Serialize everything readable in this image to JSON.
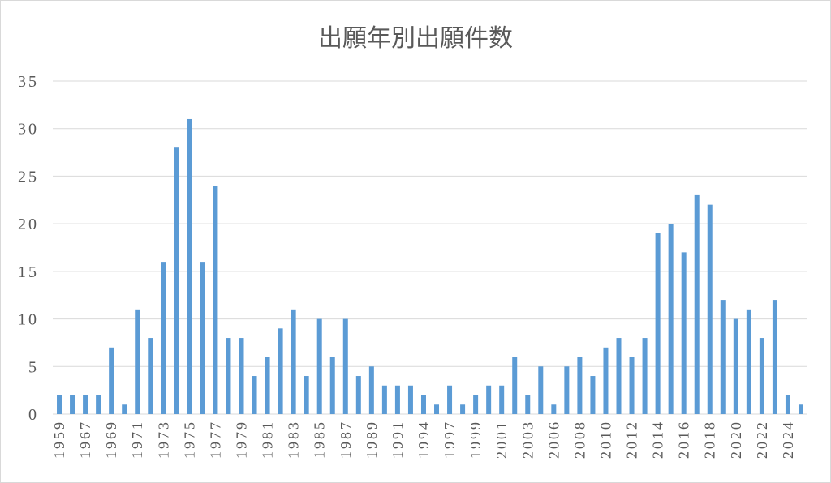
{
  "chart_data": {
    "type": "bar",
    "title": "出願年別出願件数",
    "xlabel": "",
    "ylabel": "",
    "categories": [
      "1959",
      "",
      "1967",
      "",
      "1969",
      "",
      "1971",
      "",
      "1973",
      "",
      "1975",
      "",
      "1977",
      "",
      "1979",
      "",
      "1981",
      "",
      "1983",
      "",
      "1985",
      "",
      "1987",
      "",
      "1989",
      "",
      "1991",
      "",
      "1994",
      "",
      "1997",
      "",
      "1999",
      "",
      "2001",
      "",
      "2003",
      "",
      "2006",
      "",
      "2008",
      "",
      "2010",
      "",
      "2012",
      "",
      "2014",
      "",
      "2016",
      "",
      "2018",
      "",
      "2020",
      "",
      "2022",
      "",
      "2024",
      ""
    ],
    "values": [
      2,
      2,
      2,
      2,
      7,
      1,
      11,
      8,
      16,
      28,
      31,
      16,
      24,
      8,
      8,
      4,
      6,
      9,
      11,
      4,
      10,
      6,
      10,
      4,
      5,
      3,
      3,
      3,
      2,
      1,
      3,
      1,
      2,
      3,
      3,
      6,
      2,
      5,
      1,
      5,
      6,
      4,
      7,
      8,
      6,
      8,
      19,
      20,
      17,
      23,
      22,
      12,
      10,
      11,
      8,
      12,
      2,
      1
    ],
    "ylim": [
      0,
      35
    ],
    "yticks": [
      0,
      5,
      10,
      15,
      20,
      25,
      30,
      35
    ],
    "grid": true,
    "legend": "none",
    "bar_color": "#5b9bd5"
  }
}
